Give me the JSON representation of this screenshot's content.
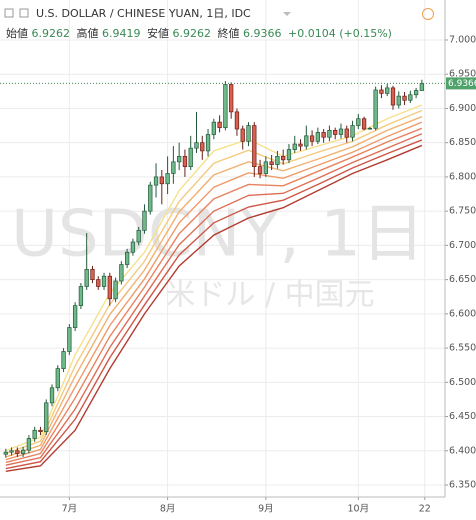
{
  "chart_data": {
    "type": "candlestick",
    "title": "U.S. DOLLAR / CHINESE YUAN, 1日, IDC",
    "header_labels": {
      "open": "始値",
      "high": "高値",
      "low": "安値",
      "close": "終値"
    },
    "change": "+0.0104",
    "change_pct": "(+0.15%)",
    "watermark": "USDCNY, 1日",
    "watermark_sub": "米ドル / 中国元",
    "up_color": "#6fb88a",
    "down_color": "#d9604f",
    "grid": true,
    "xlim": [
      -1,
      76
    ],
    "xticks": [
      {
        "value": 11,
        "label": "7月"
      },
      {
        "value": 28,
        "label": "8月"
      },
      {
        "value": 45,
        "label": "9月"
      },
      {
        "value": 61,
        "label": "10月"
      },
      {
        "value": 72.5,
        "label": "22"
      }
    ],
    "ylim": [
      6.3325,
      7.0584
    ],
    "yticks": [
      {
        "value": 6.35,
        "label": "6.3500"
      },
      {
        "value": 6.4,
        "label": "6.4000"
      },
      {
        "value": 6.45,
        "label": "6.4500"
      },
      {
        "value": 6.5,
        "label": "6.5000"
      },
      {
        "value": 6.55,
        "label": "6.5500"
      },
      {
        "value": 6.6,
        "label": "6.6000"
      },
      {
        "value": 6.65,
        "label": "6.6500"
      },
      {
        "value": 6.7,
        "label": "6.7000"
      },
      {
        "value": 6.75,
        "label": "6.7500"
      },
      {
        "value": 6.8,
        "label": "6.8000"
      },
      {
        "value": 6.85,
        "label": "6.8500"
      },
      {
        "value": 6.9,
        "label": "6.9000"
      },
      {
        "value": 6.95,
        "label": "6.9500"
      },
      {
        "value": 7,
        "label": "7.0000"
      }
    ],
    "open": [
      6.395,
      6.398,
      6.4,
      6.396,
      6.401,
      6.418,
      6.43,
      6.428,
      6.47,
      6.492,
      6.52,
      6.545,
      6.58,
      6.612,
      6.64,
      6.665,
      6.65,
      6.64,
      6.655,
      6.622,
      6.648,
      6.672,
      6.69,
      6.705,
      6.722,
      6.75,
      6.788,
      6.8,
      6.79,
      6.805,
      6.822,
      6.83,
      6.815,
      6.842,
      6.85,
      6.838,
      6.862,
      6.88,
      6.872,
      6.935,
      6.895,
      6.87,
      6.852,
      6.875,
      6.815,
      6.805,
      6.822,
      6.818,
      6.83,
      6.825,
      6.84,
      6.848,
      6.845,
      6.86,
      6.852,
      6.865,
      6.858,
      6.868,
      6.862,
      6.87,
      6.858,
      6.875,
      6.885,
      6.87,
      6.871,
      6.927,
      6.922,
      6.93,
      6.905,
      6.918,
      6.912,
      6.92,
      6.9262
    ],
    "high": [
      6.403,
      6.405,
      6.405,
      6.406,
      6.423,
      6.435,
      6.435,
      6.475,
      6.497,
      6.525,
      6.55,
      6.585,
      6.617,
      6.645,
      6.718,
      6.67,
      6.655,
      6.66,
      6.66,
      6.653,
      6.677,
      6.695,
      6.71,
      6.727,
      6.76,
      6.793,
      6.82,
      6.81,
      6.83,
      6.845,
      6.85,
      6.84,
      6.86,
      6.895,
      6.86,
      6.87,
      6.885,
      6.89,
      6.94,
      6.938,
      6.9,
      6.875,
      6.88,
      6.88,
      6.825,
      6.83,
      6.832,
      6.838,
      6.84,
      6.848,
      6.86,
      6.855,
      6.875,
      6.868,
      6.872,
      6.87,
      6.875,
      6.872,
      6.878,
      6.875,
      6.882,
      6.892,
      6.888,
      6.873,
      6.932,
      6.934,
      6.936,
      6.933,
      6.925,
      6.924,
      6.926,
      6.93,
      6.9419
    ],
    "low": [
      6.39,
      6.393,
      6.391,
      6.391,
      6.396,
      6.413,
      6.423,
      6.423,
      6.465,
      6.487,
      6.515,
      6.54,
      6.575,
      6.607,
      6.635,
      6.645,
      6.635,
      6.635,
      6.612,
      6.617,
      6.643,
      6.667,
      6.685,
      6.7,
      6.717,
      6.745,
      6.77,
      6.76,
      6.775,
      6.79,
      6.81,
      6.8,
      6.81,
      6.835,
      6.825,
      6.83,
      6.855,
      6.865,
      6.868,
      6.885,
      6.86,
      6.84,
      6.845,
      6.8,
      6.798,
      6.8,
      6.81,
      6.812,
      6.818,
      6.82,
      6.835,
      6.838,
      6.84,
      6.845,
      6.848,
      6.85,
      6.852,
      6.855,
      6.856,
      6.85,
      6.852,
      6.87,
      6.868,
      6.869,
      6.868,
      6.915,
      6.918,
      6.898,
      6.9,
      6.905,
      6.908,
      6.915,
      6.9262
    ],
    "close": [
      6.398,
      6.4,
      6.396,
      6.401,
      6.418,
      6.43,
      6.428,
      6.47,
      6.492,
      6.52,
      6.545,
      6.58,
      6.612,
      6.64,
      6.665,
      6.65,
      6.64,
      6.655,
      6.622,
      6.648,
      6.672,
      6.69,
      6.705,
      6.722,
      6.75,
      6.788,
      6.8,
      6.79,
      6.805,
      6.822,
      6.83,
      6.815,
      6.842,
      6.85,
      6.838,
      6.862,
      6.88,
      6.872,
      6.935,
      6.895,
      6.87,
      6.852,
      6.875,
      6.815,
      6.805,
      6.822,
      6.818,
      6.83,
      6.825,
      6.84,
      6.848,
      6.845,
      6.86,
      6.852,
      6.865,
      6.858,
      6.868,
      6.862,
      6.87,
      6.858,
      6.875,
      6.885,
      6.87,
      6.871,
      6.927,
      6.922,
      6.93,
      6.905,
      6.918,
      6.912,
      6.92,
      6.9262,
      6.9366
    ],
    "ribbon_x": [
      0,
      6,
      12,
      18,
      24,
      30,
      36,
      42,
      48,
      54,
      60,
      66,
      72
    ],
    "ribbons": [
      {
        "color": "#f6e08c",
        "values": [
          6.4,
          6.42,
          6.54,
          6.63,
          6.69,
          6.78,
          6.838,
          6.855,
          6.83,
          6.845,
          6.86,
          6.885,
          6.905
        ]
      },
      {
        "color": "#f4ca7e",
        "values": [
          6.396,
          6.414,
          6.524,
          6.614,
          6.677,
          6.764,
          6.82,
          6.839,
          6.819,
          6.836,
          6.852,
          6.876,
          6.897
        ]
      },
      {
        "color": "#f2b170",
        "values": [
          6.391,
          6.408,
          6.509,
          6.599,
          6.664,
          6.749,
          6.803,
          6.822,
          6.809,
          6.826,
          6.844,
          6.868,
          6.888
        ]
      },
      {
        "color": "#ef9a68",
        "values": [
          6.387,
          6.402,
          6.493,
          6.583,
          6.651,
          6.733,
          6.785,
          6.806,
          6.798,
          6.817,
          6.836,
          6.859,
          6.88
        ]
      },
      {
        "color": "#e9835f",
        "values": [
          6.383,
          6.396,
          6.477,
          6.567,
          6.639,
          6.717,
          6.768,
          6.789,
          6.787,
          6.808,
          6.829,
          6.851,
          6.871
        ]
      },
      {
        "color": "#df6d55",
        "values": [
          6.379,
          6.39,
          6.461,
          6.551,
          6.626,
          6.701,
          6.75,
          6.773,
          6.776,
          6.798,
          6.821,
          6.842,
          6.863
        ]
      },
      {
        "color": "#cf5546",
        "values": [
          6.374,
          6.384,
          6.446,
          6.536,
          6.613,
          6.686,
          6.733,
          6.756,
          6.766,
          6.789,
          6.813,
          6.834,
          6.854
        ]
      },
      {
        "color": "#b23b2f",
        "values": [
          6.37,
          6.378,
          6.43,
          6.52,
          6.6,
          6.67,
          6.715,
          6.74,
          6.755,
          6.78,
          6.805,
          6.825,
          6.846
        ]
      }
    ]
  }
}
